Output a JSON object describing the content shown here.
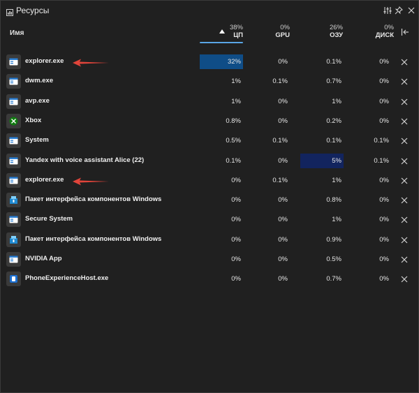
{
  "window": {
    "title": "Ресурсы"
  },
  "header": {
    "name_label": "Имя",
    "columns": [
      {
        "key": "cpu",
        "pct": "38%",
        "label": "ЦП"
      },
      {
        "key": "gpu",
        "pct": "0%",
        "label": "GPU"
      },
      {
        "key": "ram",
        "pct": "26%",
        "label": "ОЗУ"
      },
      {
        "key": "disk",
        "pct": "0%",
        "label": "ДИСК"
      }
    ]
  },
  "icons": {
    "title": "resources-icon",
    "settings": "sliders-icon",
    "pin": "pin-icon",
    "collapse": "collapse-left-icon",
    "close": "close-icon",
    "xbox": "xbox-icon",
    "app": "app-window-icon",
    "package": "package-icon",
    "phone": "phone-link-icon"
  },
  "colors": {
    "background": "#202020",
    "cpu_highlight": "#0f4d87",
    "ram_highlight": "#12245e",
    "sort_underline": "#5aa6e6",
    "annotation_arrow": "#e0443a",
    "xbox_green": "#107c10"
  },
  "processes": [
    {
      "name": "explorer.exe",
      "icon": "app",
      "cpu": "32%",
      "gpu": "0%",
      "ram": "0.1%",
      "disk": "0%",
      "hl": "cpu",
      "annotated": true
    },
    {
      "name": "dwm.exe",
      "icon": "app",
      "cpu": "1%",
      "gpu": "0.1%",
      "ram": "0.7%",
      "disk": "0%"
    },
    {
      "name": "avp.exe",
      "icon": "app",
      "cpu": "1%",
      "gpu": "0%",
      "ram": "1%",
      "disk": "0%"
    },
    {
      "name": "Xbox",
      "icon": "xbox",
      "cpu": "0.8%",
      "gpu": "0%",
      "ram": "0.2%",
      "disk": "0%"
    },
    {
      "name": "System",
      "icon": "app",
      "cpu": "0.5%",
      "gpu": "0.1%",
      "ram": "0.1%",
      "disk": "0.1%"
    },
    {
      "name": "Yandex with voice assistant Alice (22)",
      "icon": "app",
      "cpu": "0.1%",
      "gpu": "0%",
      "ram": "5%",
      "disk": "0.1%",
      "hl": "ram"
    },
    {
      "name": "explorer.exe",
      "icon": "app",
      "cpu": "0%",
      "gpu": "0.1%",
      "ram": "1%",
      "disk": "0%",
      "annotated": true
    },
    {
      "name": "Пакет интерфейса компонентов Windows",
      "icon": "package",
      "cpu": "0%",
      "gpu": "0%",
      "ram": "0.8%",
      "disk": "0%"
    },
    {
      "name": "Secure System",
      "icon": "app",
      "cpu": "0%",
      "gpu": "0%",
      "ram": "1%",
      "disk": "0%"
    },
    {
      "name": "Пакет интерфейса компонентов Windows",
      "icon": "package",
      "cpu": "0%",
      "gpu": "0%",
      "ram": "0.9%",
      "disk": "0%"
    },
    {
      "name": "NVIDIA App",
      "icon": "app",
      "cpu": "0%",
      "gpu": "0%",
      "ram": "0.5%",
      "disk": "0%"
    },
    {
      "name": "PhoneExperienceHost.exe",
      "icon": "phone",
      "cpu": "0%",
      "gpu": "0%",
      "ram": "0.7%",
      "disk": "0%"
    }
  ]
}
